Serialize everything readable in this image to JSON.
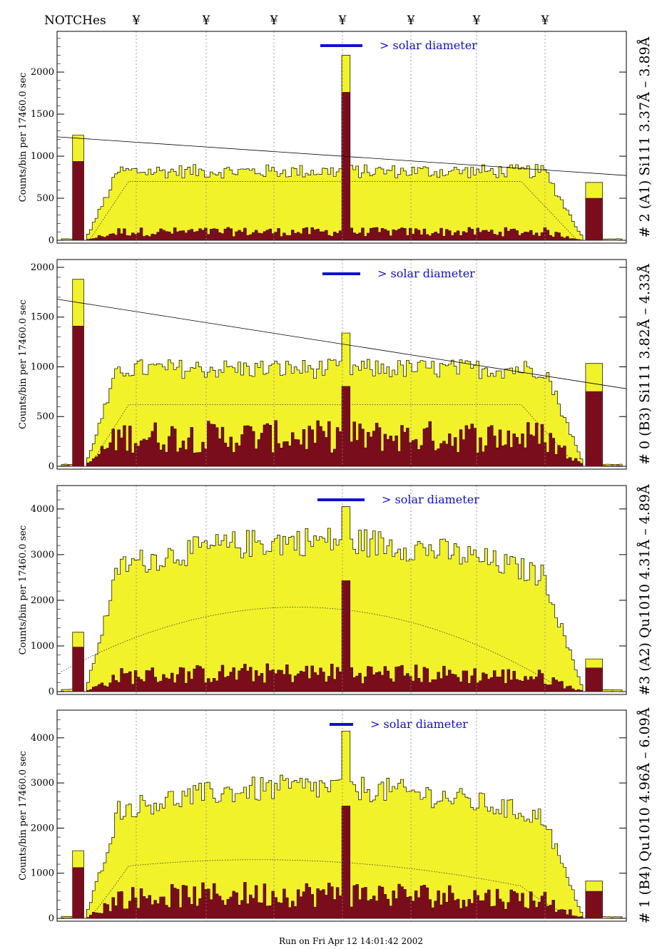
{
  "header": {
    "notches_label": "NOTCHes",
    "notch_symbol": "¥",
    "notch_count": 7
  },
  "footer": {
    "run_text": "Run on Fri Apr 12 14:01:42 2002"
  },
  "colors": {
    "background": "#ffffff",
    "fill_total": "#f2f22a",
    "fill_lines": "#7a0d1c",
    "solar_bar": "#1010d0"
  },
  "chart_data": [
    {
      "type": "area",
      "panel_label": "# 2 (A1) Si111  3.37Å – 3.89Å",
      "ylabel": "Counts/bin per  17460.0 sec",
      "ylim": [
        0,
        2450
      ],
      "yticks": [
        0,
        500,
        1000,
        1500,
        2000
      ],
      "solar_diameter_label": "> solar diameter",
      "continuum_level": 700,
      "total_level": 820,
      "line_level": 110,
      "edge_peak": 1250,
      "central_peak": 2200,
      "trend_line": [
        1230,
        770
      ]
    },
    {
      "type": "area",
      "panel_label": "# 0 (B3) Si111  3.82Å – 4.33Å",
      "ylabel": "Counts/bin per  17460.0 sec",
      "ylim": [
        0,
        2050
      ],
      "yticks": [
        0,
        500,
        1000,
        1500,
        2000
      ],
      "solar_diameter_label": "> solar diameter",
      "continuum_level": 620,
      "total_level": 980,
      "line_level": 330,
      "edge_peak": 1880,
      "central_peak": 1340,
      "trend_line": [
        1680,
        780
      ]
    },
    {
      "type": "area",
      "panel_label": "#3 (A2) Qu1010  4.31Å – 4.89Å",
      "ylabel": "Counts/bin per  17460.0 sec",
      "ylim": [
        0,
        4450
      ],
      "yticks": [
        0,
        1000,
        2000,
        3000,
        4000
      ],
      "solar_diameter_label": "> solar diameter",
      "continuum_level": 1850,
      "total_level": 3300,
      "line_level": 450,
      "edge_peak": 1300,
      "central_peak": 4050,
      "trend_line": null
    },
    {
      "type": "area",
      "panel_label": "# 1 (B4) Qu1010 4.96Å – 6.09Å",
      "ylabel": "Counts/bin per  17460.0 sec",
      "ylim": [
        0,
        4550
      ],
      "yticks": [
        0,
        1000,
        2000,
        3000,
        4000
      ],
      "solar_diameter_label": "> solar diameter",
      "continuum_level": 1300,
      "total_level": 2900,
      "line_level": 600,
      "edge_peak": 1500,
      "central_peak": 4150,
      "trend_line": null
    }
  ]
}
